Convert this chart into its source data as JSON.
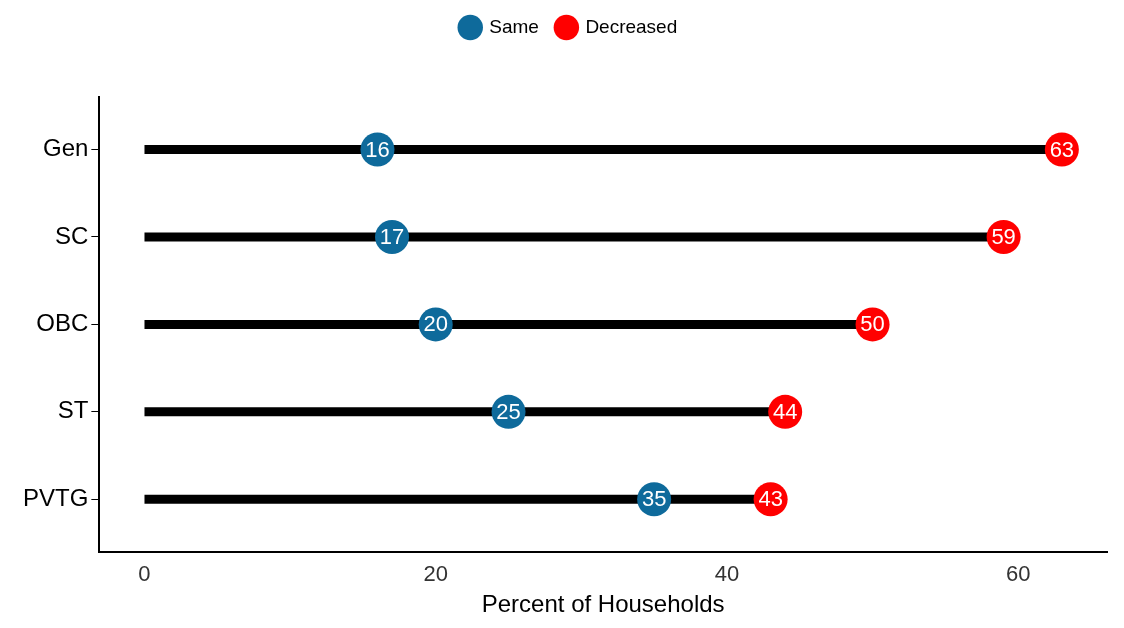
{
  "chart_data": {
    "type": "lollipop",
    "orientation": "horizontal",
    "categories": [
      "Gen",
      "SC",
      "OBC",
      "ST",
      "PVTG"
    ],
    "series": [
      {
        "name": "Same",
        "color": "#0e6a9b",
        "values": [
          16,
          17,
          20,
          25,
          35
        ]
      },
      {
        "name": "Decreased",
        "color": "#ff0000",
        "values": [
          63,
          59,
          50,
          44,
          43
        ]
      }
    ],
    "xlabel": "Percent of Households",
    "xlim": [
      -3.1,
      66.1
    ],
    "xticks": [
      0,
      20,
      40,
      60
    ],
    "data_labels": true,
    "legend": "top",
    "grid": false,
    "marker": "circle"
  }
}
